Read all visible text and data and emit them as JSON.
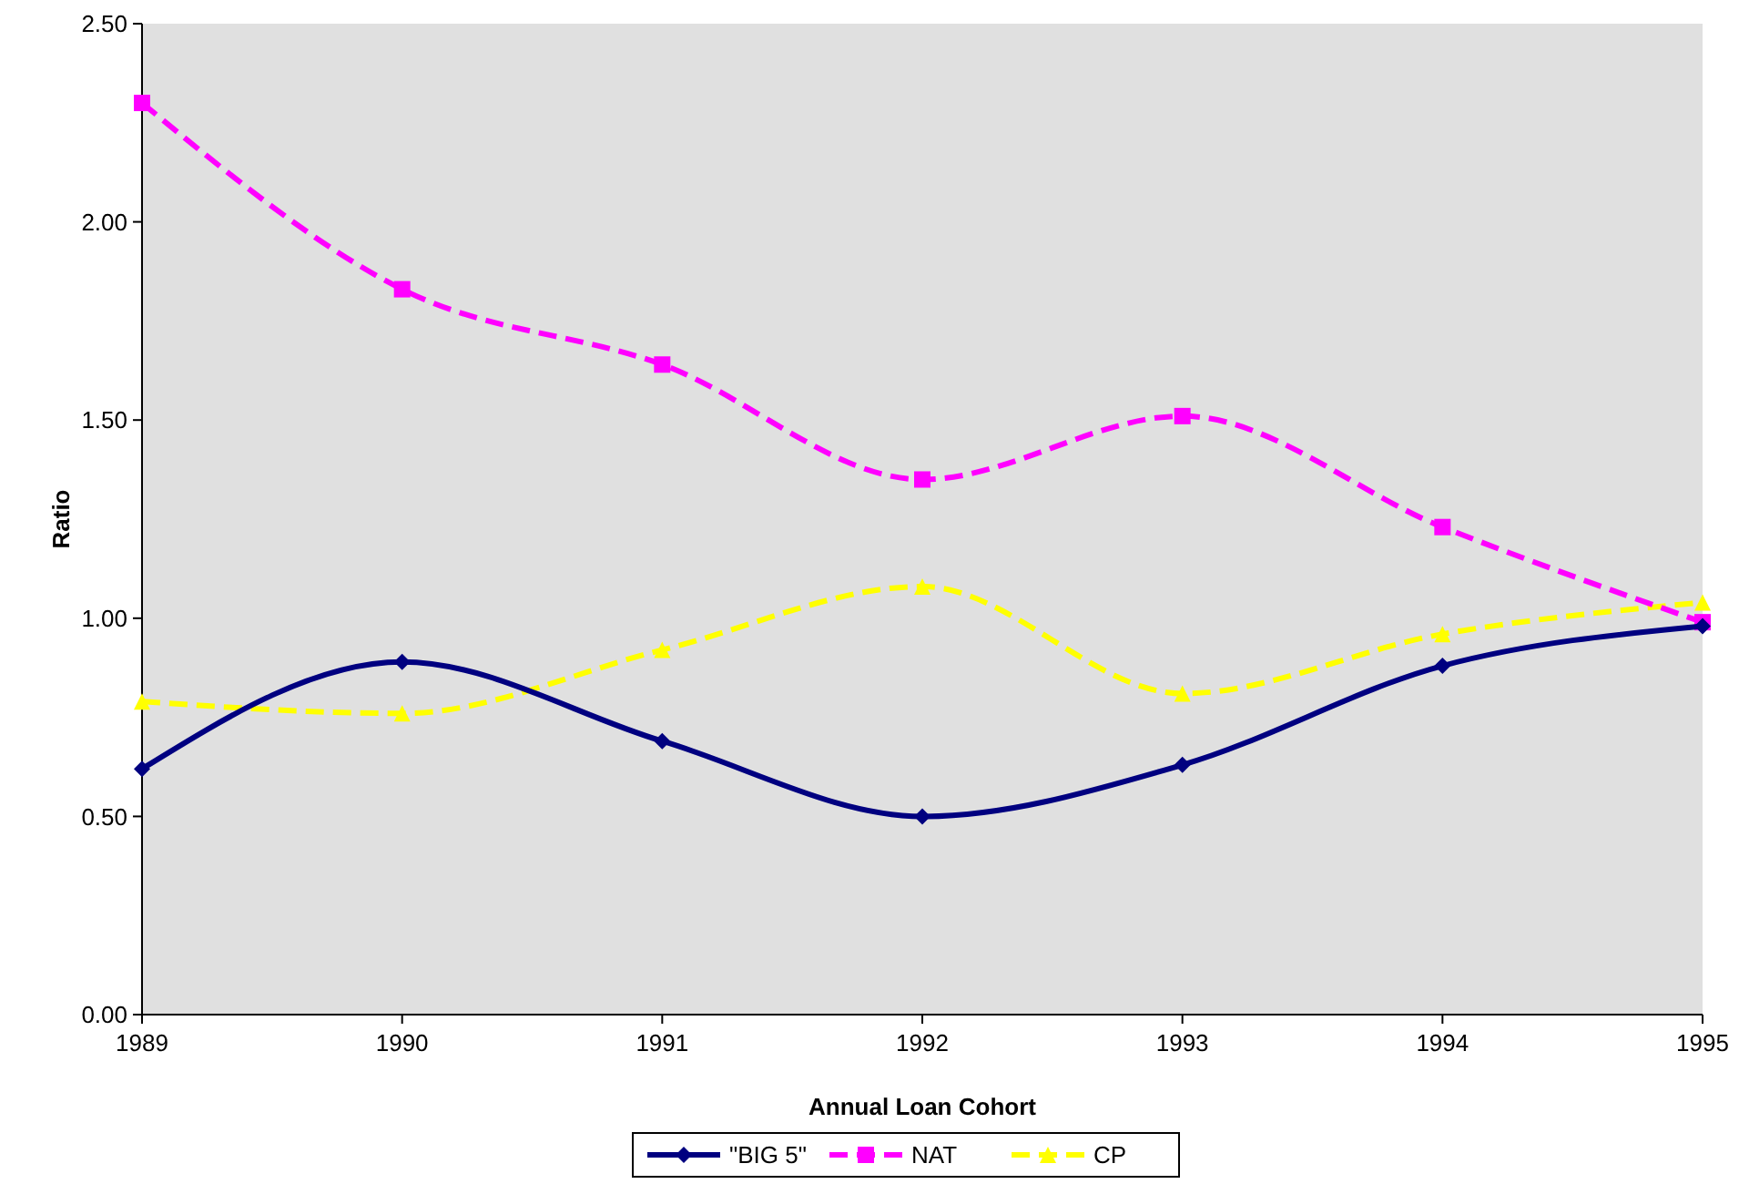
{
  "chart_data": {
    "type": "line",
    "xlabel": "Annual Loan Cohort",
    "ylabel": "Ratio",
    "x": [
      1989,
      1990,
      1991,
      1992,
      1993,
      1994,
      1995
    ],
    "xlim": [
      1989,
      1995
    ],
    "xticks": [
      1989,
      1990,
      1991,
      1992,
      1993,
      1994,
      1995
    ],
    "ylim": [
      0,
      2.5
    ],
    "yticks": [
      {
        "value": 0,
        "label": "0.00"
      },
      {
        "value": 0.5,
        "label": "0.50"
      },
      {
        "value": 1,
        "label": "1.00"
      },
      {
        "value": 1.5,
        "label": "1.50"
      },
      {
        "value": 2,
        "label": "2.00"
      },
      {
        "value": 2.5,
        "label": "2.50"
      }
    ],
    "grid": false,
    "legend": "bottom",
    "series": [
      {
        "name": "\"BIG 5\"",
        "color": "#000080",
        "marker": "diamond",
        "line_style": "solid",
        "values": [
          0.62,
          0.89,
          0.69,
          0.5,
          0.63,
          0.88,
          0.98
        ]
      },
      {
        "name": "NAT",
        "color": "#ff00ff",
        "marker": "square",
        "line_style": "dashed",
        "values": [
          2.3,
          1.83,
          1.64,
          1.35,
          1.51,
          1.23,
          0.99
        ]
      },
      {
        "name": "CP",
        "color": "#ffff00",
        "marker": "triangle",
        "line_style": "dashed",
        "values": [
          0.79,
          0.76,
          0.92,
          1.08,
          0.81,
          0.96,
          1.04
        ]
      }
    ]
  }
}
